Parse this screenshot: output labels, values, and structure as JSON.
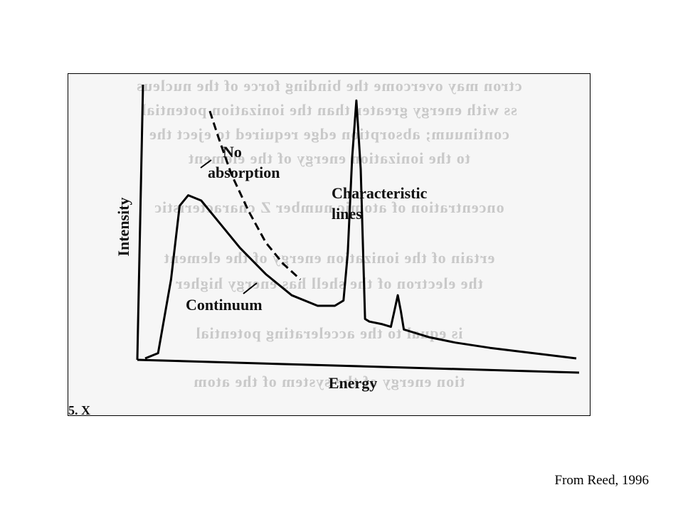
{
  "credit": "From Reed, 1996",
  "figure": {
    "caption_fragment": "5. X",
    "bleed_text": [
      "ctron may overcome the binding force of the nucleus",
      "ss with energy greater than the ionization potential",
      "continuum; absorption edge required to eject the",
      "to the ionization energy of the element",
      "oncentration of atomic number Z characteristic",
      "ertain of the ionization energy of the element",
      "the electron of the shell has energy higher",
      "is equal to the accelerating potential",
      "tion energy of the system of the atom"
    ]
  },
  "chart_data": {
    "type": "line",
    "xlabel": "Energy",
    "ylabel": "Intensity",
    "xlim": [
      0,
      100
    ],
    "ylim": [
      0,
      100
    ],
    "grid": false,
    "series": [
      {
        "name": "Continuum",
        "style": "solid",
        "x": [
          0,
          3,
          6,
          8,
          10,
          13,
          17,
          22,
          28,
          34,
          40,
          44,
          46,
          47,
          48,
          49,
          50,
          51,
          52,
          55,
          57,
          57.8,
          58.6,
          59.3,
          60,
          62,
          66,
          72,
          80,
          90,
          100
        ],
        "y": [
          0,
          2,
          30,
          58,
          62,
          60,
          52,
          42,
          32,
          24,
          20,
          20,
          22,
          40,
          76,
          98,
          72,
          15,
          14,
          13,
          12,
          18,
          24,
          18,
          11,
          10,
          8,
          6,
          4,
          2,
          0
        ]
      },
      {
        "name": "No absorption",
        "style": "dashed",
        "x": [
          15,
          17,
          20,
          24,
          28,
          32,
          36
        ],
        "y": [
          94,
          84,
          70,
          56,
          44,
          36,
          30
        ]
      }
    ],
    "annotations": [
      "No absorption",
      "Characteristic lines",
      "Continuum"
    ],
    "colors": {
      "line": "#000000",
      "background": "#f6f6f6",
      "bleed": "#c9c9c9"
    }
  }
}
